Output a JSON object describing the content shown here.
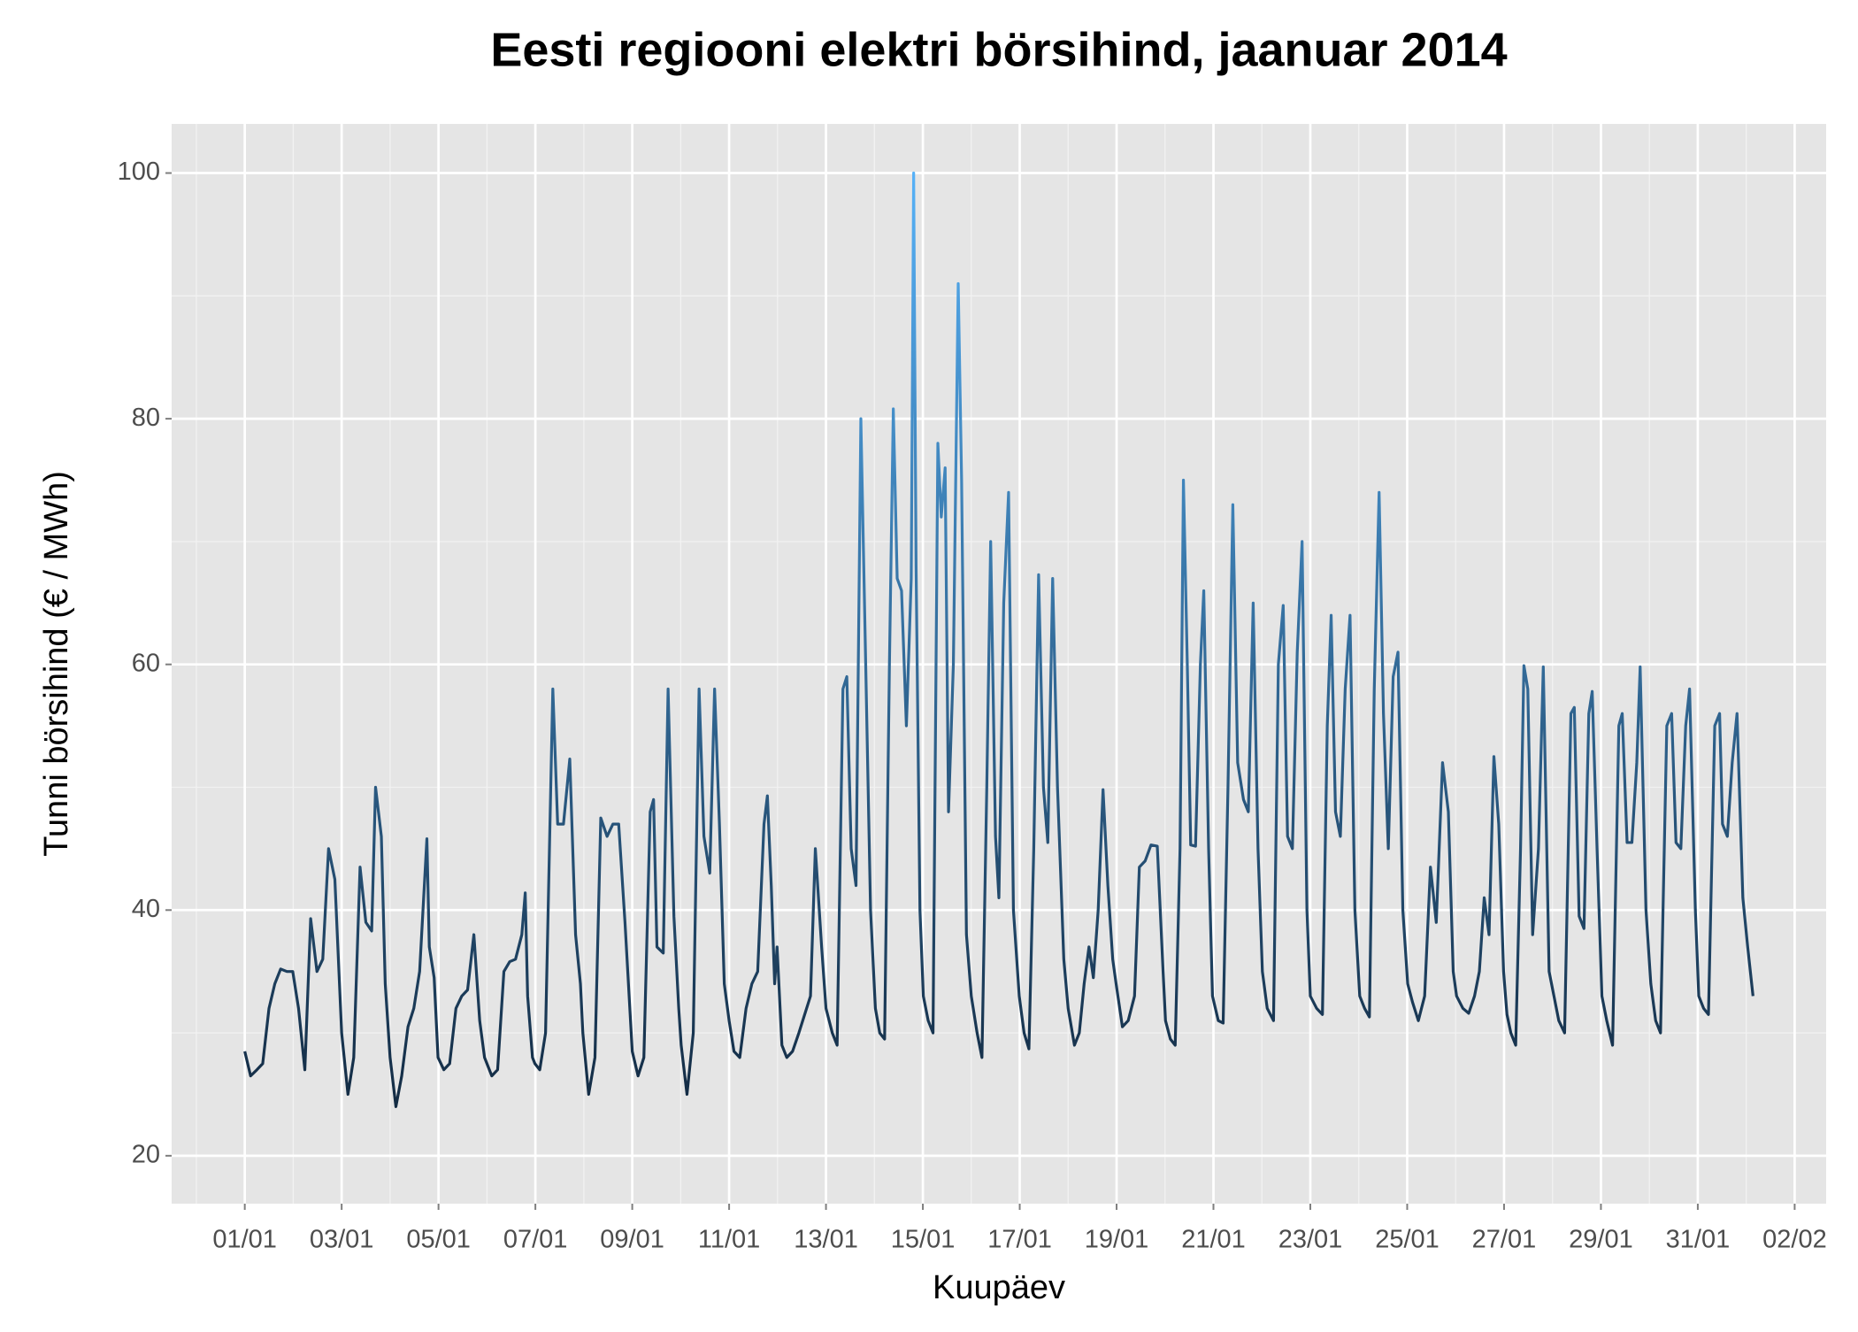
{
  "chart_data": {
    "type": "line",
    "title": "Eesti regiooni elektri börsihind, jaanuar 2014",
    "x_label": "Kuupäev",
    "y_label": "Tunni börsihind (€ / MWh)",
    "color_low": "#132B43",
    "color_high": "#56B1F7",
    "grid": true,
    "xlim": [
      -0.51,
      33.65
    ],
    "ylim": [
      16.1,
      104
    ],
    "xticks": [
      {
        "value": 1,
        "label": "01/01"
      },
      {
        "value": 3,
        "label": "03/01"
      },
      {
        "value": 5,
        "label": "05/01"
      },
      {
        "value": 7,
        "label": "07/01"
      },
      {
        "value": 9,
        "label": "09/01"
      },
      {
        "value": 11,
        "label": "11/01"
      },
      {
        "value": 13,
        "label": "13/01"
      },
      {
        "value": 15,
        "label": "15/01"
      },
      {
        "value": 17,
        "label": "17/01"
      },
      {
        "value": 19,
        "label": "19/01"
      },
      {
        "value": 21,
        "label": "21/01"
      },
      {
        "value": 23,
        "label": "23/01"
      },
      {
        "value": 25,
        "label": "25/01"
      },
      {
        "value": 27,
        "label": "27/01"
      },
      {
        "value": 29,
        "label": "29/01"
      },
      {
        "value": 31,
        "label": "31/01"
      },
      {
        "value": 33,
        "label": "02/02"
      }
    ],
    "xminor": [
      0,
      2,
      4,
      6,
      8,
      10,
      12,
      14,
      16,
      18,
      20,
      22,
      24,
      26,
      28,
      30,
      32
    ],
    "yticks": [
      20,
      40,
      60,
      80,
      100
    ],
    "yminor": [
      30,
      50,
      70,
      90
    ],
    "x": [
      1.0,
      1.12,
      1.25,
      1.37,
      1.5,
      1.62,
      1.74,
      1.87,
      1.99,
      2.11,
      2.24,
      2.36,
      2.49,
      2.61,
      2.73,
      2.86,
      3.0,
      3.13,
      3.25,
      3.38,
      3.5,
      3.62,
      3.7,
      3.82,
      3.9,
      4.0,
      4.12,
      4.24,
      4.37,
      4.49,
      4.61,
      4.76,
      4.81,
      4.91,
      4.99,
      5.11,
      5.23,
      5.36,
      5.48,
      5.6,
      5.73,
      5.85,
      5.95,
      6.0,
      6.1,
      6.22,
      6.35,
      6.47,
      6.59,
      6.72,
      6.79,
      6.84,
      6.94,
      6.99,
      7.09,
      7.21,
      7.36,
      7.46,
      7.58,
      7.71,
      7.83,
      7.93,
      7.98,
      8.1,
      8.23,
      8.35,
      8.48,
      8.6,
      8.72,
      8.85,
      8.95,
      9.0,
      9.12,
      9.24,
      9.37,
      9.44,
      9.51,
      9.64,
      9.74,
      9.86,
      9.96,
      10.01,
      10.13,
      10.26,
      10.38,
      10.48,
      10.6,
      10.7,
      10.8,
      10.9,
      11.0,
      11.1,
      11.22,
      11.35,
      11.47,
      11.59,
      11.72,
      11.79,
      11.87,
      11.94,
      11.99,
      12.09,
      12.19,
      12.31,
      12.44,
      12.56,
      12.68,
      12.78,
      12.91,
      13.0,
      13.13,
      13.23,
      13.35,
      13.43,
      13.52,
      13.62,
      13.72,
      13.82,
      13.92,
      14.02,
      14.11,
      14.21,
      14.31,
      14.39,
      14.47,
      14.56,
      14.66,
      14.76,
      14.81,
      14.86,
      14.94,
      15.01,
      15.11,
      15.21,
      15.31,
      15.38,
      15.46,
      15.53,
      15.63,
      15.73,
      15.8,
      15.9,
      16.0,
      16.12,
      16.22,
      16.32,
      16.4,
      16.5,
      16.57,
      16.67,
      16.77,
      16.87,
      16.99,
      17.09,
      17.19,
      17.29,
      17.39,
      17.49,
      17.58,
      17.68,
      17.78,
      17.91,
      18.0,
      18.13,
      18.23,
      18.33,
      18.43,
      18.52,
      18.62,
      18.72,
      18.82,
      18.92,
      18.99,
      19.12,
      19.24,
      19.37,
      19.47,
      19.59,
      19.71,
      19.84,
      19.96,
      20.01,
      20.11,
      20.21,
      20.31,
      20.38,
      20.46,
      20.53,
      20.63,
      20.73,
      20.8,
      20.9,
      20.98,
      21.1,
      21.2,
      21.3,
      21.4,
      21.5,
      21.62,
      21.72,
      21.82,
      21.92,
      22.01,
      22.11,
      22.24,
      22.34,
      22.44,
      22.53,
      22.63,
      22.73,
      22.83,
      22.93,
      23.0,
      23.13,
      23.25,
      23.35,
      23.43,
      23.52,
      23.62,
      23.72,
      23.82,
      23.92,
      24.02,
      24.12,
      24.22,
      24.32,
      24.42,
      24.51,
      24.61,
      24.71,
      24.81,
      24.91,
      25.01,
      25.11,
      25.23,
      25.36,
      25.48,
      25.6,
      25.73,
      25.85,
      25.95,
      26.02,
      26.15,
      26.27,
      26.39,
      26.49,
      26.59,
      26.69,
      26.79,
      26.89,
      26.99,
      27.06,
      27.14,
      27.24,
      27.34,
      27.41,
      27.49,
      27.59,
      27.71,
      27.81,
      27.93,
      28.03,
      28.13,
      28.25,
      28.38,
      28.45,
      28.55,
      28.65,
      28.75,
      28.82,
      28.92,
      29.02,
      29.12,
      29.24,
      29.37,
      29.44,
      29.54,
      29.64,
      29.74,
      29.81,
      29.93,
      30.03,
      30.13,
      30.23,
      30.36,
      30.46,
      30.55,
      30.65,
      30.75,
      30.83,
      30.95,
      31.02,
      31.12,
      31.22,
      31.35,
      31.45,
      31.51,
      31.61,
      31.71,
      31.81,
      31.93,
      32.03,
      32.14
    ],
    "values": [
      28.5,
      26.5,
      27,
      27.5,
      32,
      34,
      35.2,
      35,
      35,
      32,
      27,
      39.3,
      35,
      36,
      45,
      42.5,
      30,
      25,
      28,
      43.5,
      39,
      38.3,
      50,
      46,
      34,
      28,
      24,
      26.5,
      30.5,
      32,
      35,
      45.8,
      37,
      34.5,
      28,
      27,
      27.5,
      32,
      33,
      33.5,
      38,
      31,
      28,
      27.5,
      26.5,
      27,
      35,
      35.8,
      36,
      38,
      41.4,
      33,
      28,
      27.5,
      27,
      30,
      58,
      47,
      47,
      52.3,
      38,
      34,
      30,
      25,
      28,
      47.5,
      46,
      47,
      47,
      39,
      32,
      28.5,
      26.5,
      28,
      48,
      49,
      37,
      36.5,
      58,
      39.5,
      32,
      29,
      25,
      30,
      58,
      46,
      43,
      58,
      47,
      34,
      31,
      28.5,
      28,
      32,
      34,
      35,
      47,
      49.3,
      42,
      34,
      37,
      29,
      28,
      28.5,
      30,
      31.5,
      33,
      45,
      37,
      32,
      30,
      29,
      58,
      59,
      45,
      42,
      80,
      60,
      40,
      32,
      30,
      29.5,
      60,
      80.8,
      67,
      66,
      55,
      67,
      100,
      68,
      40,
      33,
      31,
      30,
      78,
      72,
      76,
      48,
      60,
      91,
      75,
      38,
      33,
      30,
      28,
      50,
      70,
      46,
      41,
      65,
      74,
      40,
      33,
      30,
      28.7,
      45,
      67.3,
      50,
      45.5,
      67,
      50,
      36,
      32,
      29,
      30,
      34,
      37,
      34.5,
      40,
      49.8,
      42,
      36,
      34,
      30.5,
      31,
      33,
      43.5,
      44,
      45.3,
      45.2,
      35,
      31,
      29.5,
      29,
      45,
      75,
      60,
      45.3,
      45.2,
      60,
      66,
      45,
      33,
      31,
      30.8,
      50,
      73,
      52,
      49,
      48,
      65,
      45,
      35,
      32,
      31,
      60,
      64.8,
      46,
      45,
      61,
      70,
      40,
      33,
      32,
      31.5,
      55,
      64,
      48,
      46,
      58,
      64,
      40,
      33,
      32,
      31.3,
      58,
      74,
      56,
      45,
      59,
      61,
      40,
      34,
      32.5,
      31,
      33,
      43.5,
      39,
      52,
      48,
      35,
      33,
      32,
      31.6,
      33,
      35,
      41,
      38,
      52.5,
      47,
      35,
      31.5,
      30,
      29,
      45,
      59.9,
      58,
      38,
      45,
      59.8,
      35,
      33,
      31,
      30,
      56,
      56.5,
      39.5,
      38.5,
      56,
      57.8,
      45,
      33,
      31,
      29,
      55,
      56,
      45.5,
      45.5,
      52,
      59.8,
      40,
      34,
      31,
      30,
      55,
      56,
      45.5,
      45,
      55,
      58,
      40,
      33,
      32,
      31.5,
      55,
      56,
      47,
      46,
      52,
      56,
      41,
      37,
      33
    ]
  }
}
